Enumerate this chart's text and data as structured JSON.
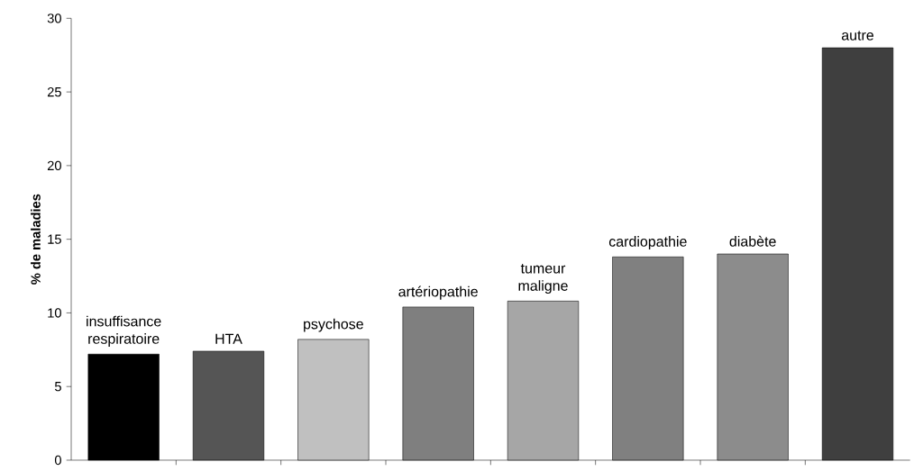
{
  "chart_data": {
    "type": "bar",
    "ylabel": "% de maladies",
    "categories": [
      "insuffisance respiratoire",
      "HTA",
      "psychose",
      "artériopathie",
      "tumeur maligne",
      "cardiopathie",
      "diabète",
      "autre"
    ],
    "values": [
      7.2,
      7.4,
      8.2,
      10.4,
      10.8,
      13.8,
      14.0,
      28.0
    ],
    "colors": [
      "#000000",
      "#555555",
      "#c0c0c0",
      "#7f7f7f",
      "#a6a6a6",
      "#808080",
      "#8c8c8c",
      "#3f3f3f"
    ],
    "ylim": [
      0,
      30
    ],
    "yticks": [
      0,
      5,
      10,
      15,
      20,
      25,
      30
    ],
    "grid": false,
    "tick_labels": "y"
  }
}
